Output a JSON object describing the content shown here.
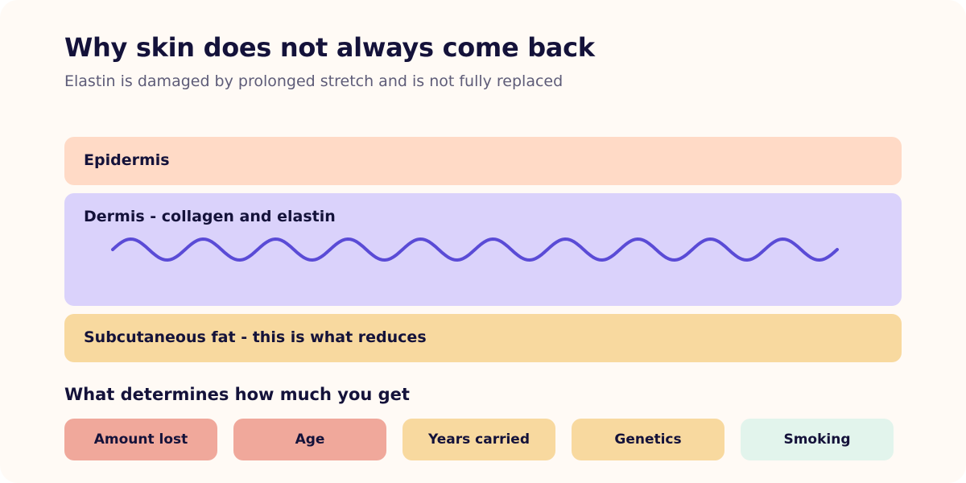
{
  "header": {
    "title": "Why skin does not always come back",
    "subtitle": "Elastin is damaged by prolonged stretch and is not fully replaced"
  },
  "layers": [
    {
      "label": "Epidermis",
      "color": "#ffdac6"
    },
    {
      "label": "Dermis - collagen and elastin",
      "color": "#dad2fb",
      "fiber_color": "#5a4bd6"
    },
    {
      "label": "Subcutaneous fat - this is what reduces",
      "color": "#f8d99f"
    }
  ],
  "factors": {
    "heading": "What determines how much you get",
    "items": [
      {
        "label": "Amount lost",
        "color": "#f0a89b"
      },
      {
        "label": "Age",
        "color": "#f0a89b"
      },
      {
        "label": "Years carried",
        "color": "#f8d99f"
      },
      {
        "label": "Genetics",
        "color": "#f8d99f"
      },
      {
        "label": "Smoking",
        "color": "#e2f4ec"
      }
    ]
  },
  "colors": {
    "background": "#fffaf5",
    "text_primary": "#14123a",
    "text_secondary": "#5e5c78"
  }
}
